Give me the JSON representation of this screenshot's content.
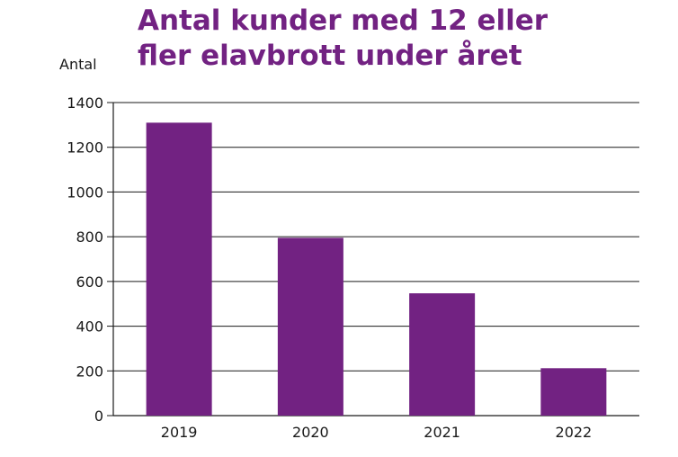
{
  "chart_data": {
    "type": "bar",
    "title_lines": [
      "Antal kunder med 12 eller",
      "fler elavbrott under året"
    ],
    "xlabel": "",
    "ylabel": "Antal",
    "categories": [
      "2019",
      "2020",
      "2021",
      "2022"
    ],
    "values": [
      1310,
      795,
      547,
      212
    ],
    "ylim": [
      0,
      1400
    ],
    "yticks": [
      0,
      200,
      400,
      600,
      800,
      1000,
      1200,
      1400
    ],
    "grid": true,
    "legend": "none",
    "bar_color": "#722282",
    "title_color": "#722282"
  }
}
